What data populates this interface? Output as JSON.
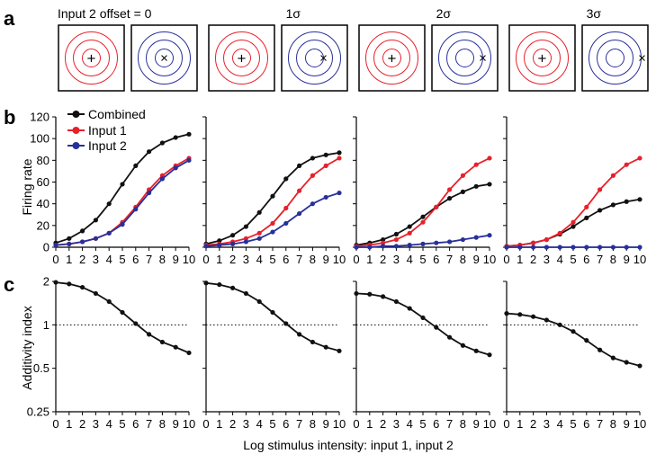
{
  "panel_letters": {
    "a": "a",
    "b": "b",
    "c": "c"
  },
  "offset_labels": [
    "Input 2 offset = 0",
    "1σ",
    "2σ",
    "3σ"
  ],
  "receptive_field_diagrams": [
    {
      "input1_marker": "+",
      "input2_marker": "×",
      "input2_marker_offset_sigma": 0
    },
    {
      "input1_marker": "+",
      "input2_marker": "×",
      "input2_marker_offset_sigma": 1
    },
    {
      "input1_marker": "+",
      "input2_marker": "×",
      "input2_marker_offset_sigma": 2
    },
    {
      "input1_marker": "+",
      "input2_marker": "×",
      "input2_marker_offset_sigma": 3
    }
  ],
  "colors": {
    "combined": "#111111",
    "input1": "#e8202a",
    "input2": "#27309a",
    "axis": "#000000"
  },
  "chart_data": [
    {
      "type": "line",
      "panel": "b",
      "offset": "0",
      "x": [
        0,
        1,
        2,
        3,
        4,
        5,
        6,
        7,
        8,
        9,
        10
      ],
      "ylabel": "Firing rate",
      "ylim": [
        0,
        120
      ],
      "yticks": [
        0,
        20,
        40,
        60,
        80,
        100,
        120
      ],
      "legend": "top-left",
      "series": [
        {
          "name": "Combined",
          "color": "#111111",
          "values": [
            4,
            8,
            15,
            25,
            40,
            58,
            75,
            88,
            96,
            101,
            104
          ]
        },
        {
          "name": "Input 1",
          "color": "#e8202a",
          "values": [
            2,
            3,
            5,
            8,
            13,
            23,
            37,
            53,
            66,
            75,
            82
          ]
        },
        {
          "name": "Input 2",
          "color": "#27309a",
          "values": [
            2,
            3,
            5,
            8,
            13,
            21,
            35,
            50,
            63,
            73,
            80
          ]
        }
      ]
    },
    {
      "type": "line",
      "panel": "b",
      "offset": "1σ",
      "x": [
        0,
        1,
        2,
        3,
        4,
        5,
        6,
        7,
        8,
        9,
        10
      ],
      "ylim": [
        0,
        120
      ],
      "series": [
        {
          "name": "Combined",
          "color": "#111111",
          "values": [
            3,
            6,
            11,
            19,
            32,
            47,
            63,
            75,
            82,
            85,
            87
          ]
        },
        {
          "name": "Input 1",
          "color": "#e8202a",
          "values": [
            2,
            3,
            5,
            8,
            13,
            22,
            36,
            52,
            66,
            75,
            82
          ]
        },
        {
          "name": "Input 2",
          "color": "#27309a",
          "values": [
            1,
            2,
            3,
            5,
            8,
            14,
            22,
            31,
            40,
            46,
            50
          ]
        }
      ]
    },
    {
      "type": "line",
      "panel": "b",
      "offset": "2σ",
      "x": [
        0,
        1,
        2,
        3,
        4,
        5,
        6,
        7,
        8,
        9,
        10
      ],
      "ylim": [
        0,
        120
      ],
      "series": [
        {
          "name": "Combined",
          "color": "#111111",
          "values": [
            2,
            4,
            7,
            12,
            19,
            28,
            37,
            45,
            51,
            56,
            58
          ]
        },
        {
          "name": "Input 1",
          "color": "#e8202a",
          "values": [
            1,
            2,
            4,
            7,
            13,
            23,
            37,
            53,
            66,
            76,
            82
          ]
        },
        {
          "name": "Input 2",
          "color": "#27309a",
          "values": [
            0,
            0,
            1,
            1,
            2,
            3,
            4,
            5,
            7,
            9,
            11
          ]
        }
      ]
    },
    {
      "type": "line",
      "panel": "b",
      "offset": "3σ",
      "x": [
        0,
        1,
        2,
        3,
        4,
        5,
        6,
        7,
        8,
        9,
        10
      ],
      "ylim": [
        0,
        120
      ],
      "series": [
        {
          "name": "Combined",
          "color": "#111111",
          "values": [
            1,
            2,
            4,
            7,
            12,
            19,
            27,
            34,
            39,
            42,
            44
          ]
        },
        {
          "name": "Input 1",
          "color": "#e8202a",
          "values": [
            1,
            2,
            4,
            7,
            13,
            23,
            37,
            53,
            66,
            76,
            82
          ]
        },
        {
          "name": "Input 2",
          "color": "#27309a",
          "values": [
            0,
            0,
            0,
            0,
            0,
            0,
            0,
            0,
            0,
            0,
            0
          ]
        }
      ]
    },
    {
      "type": "line",
      "panel": "c",
      "offset": "0",
      "x": [
        0,
        1,
        2,
        3,
        4,
        5,
        6,
        7,
        8,
        9,
        10
      ],
      "ylabel": "Additivity index",
      "yscale": "log",
      "ylim": [
        0.25,
        2
      ],
      "yticks": [
        0.25,
        0.5,
        1,
        2
      ],
      "ytick_labels": [
        "0.25",
        "0.5",
        "1",
        "2"
      ],
      "reference_line": 1,
      "series": [
        {
          "name": "Combined",
          "color": "#111111",
          "values": [
            1.97,
            1.92,
            1.82,
            1.65,
            1.45,
            1.22,
            1.02,
            0.86,
            0.76,
            0.7,
            0.64
          ]
        }
      ]
    },
    {
      "type": "line",
      "panel": "c",
      "offset": "1σ",
      "x": [
        0,
        1,
        2,
        3,
        4,
        5,
        6,
        7,
        8,
        9,
        10
      ],
      "yscale": "log",
      "ylim": [
        0.25,
        2
      ],
      "reference_line": 1,
      "series": [
        {
          "name": "Combined",
          "color": "#111111",
          "values": [
            1.95,
            1.9,
            1.8,
            1.65,
            1.45,
            1.22,
            1.02,
            0.86,
            0.76,
            0.7,
            0.66
          ]
        }
      ]
    },
    {
      "type": "line",
      "panel": "c",
      "offset": "2σ",
      "x": [
        0,
        1,
        2,
        3,
        4,
        5,
        6,
        7,
        8,
        9,
        10
      ],
      "yscale": "log",
      "ylim": [
        0.25,
        2
      ],
      "reference_line": 1,
      "series": [
        {
          "name": "Combined",
          "color": "#111111",
          "values": [
            1.65,
            1.63,
            1.57,
            1.45,
            1.3,
            1.12,
            0.96,
            0.82,
            0.72,
            0.66,
            0.62
          ]
        }
      ]
    },
    {
      "type": "line",
      "panel": "c",
      "offset": "3σ",
      "x": [
        0,
        1,
        2,
        3,
        4,
        5,
        6,
        7,
        8,
        9,
        10
      ],
      "yscale": "log",
      "ylim": [
        0.25,
        2
      ],
      "reference_line": 1,
      "series": [
        {
          "name": "Combined",
          "color": "#111111",
          "values": [
            1.2,
            1.18,
            1.14,
            1.08,
            1.0,
            0.9,
            0.78,
            0.67,
            0.59,
            0.55,
            0.52
          ]
        }
      ]
    }
  ],
  "shared_xlabel": "Log stimulus intensity: input 1, input 2",
  "x_tick_labels": [
    "0",
    "1",
    "2",
    "3",
    "4",
    "5",
    "6",
    "7",
    "8",
    "9",
    "10"
  ],
  "legend_labels": [
    "Combined",
    "Input 1",
    "Input 2"
  ]
}
